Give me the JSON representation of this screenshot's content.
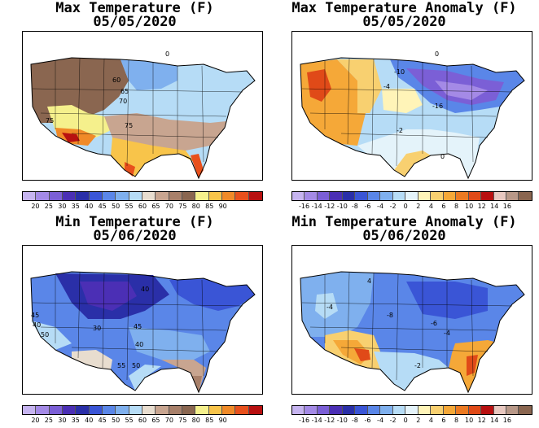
{
  "panels": [
    {
      "title": "Max Temperature (F)",
      "date": "05/05/2020",
      "scale": "temp",
      "contour_labels": [
        "0",
        "60",
        "65",
        "70",
        "75",
        "75"
      ]
    },
    {
      "title": "Max Temperature Anomaly (F)",
      "date": "05/05/2020",
      "scale": "anom",
      "contour_labels": [
        "0",
        "-10",
        "-4",
        "-16",
        "-2",
        "0"
      ]
    },
    {
      "title": "Min Temperature (F)",
      "date": "05/06/2020",
      "scale": "temp",
      "contour_labels": [
        "40",
        "45",
        "40",
        "50",
        "30",
        "45",
        "40",
        "55",
        "50"
      ]
    },
    {
      "title": "Min Temperature Anomaly (F)",
      "date": "05/06/2020",
      "scale": "anom",
      "contour_labels": [
        "4",
        "-4",
        "-8",
        "-6",
        "-4",
        "-2"
      ]
    }
  ],
  "legends": {
    "temp": {
      "ticks": [
        "20",
        "25",
        "30",
        "35",
        "40",
        "45",
        "50",
        "55",
        "60",
        "65",
        "70",
        "75",
        "80",
        "85",
        "90"
      ],
      "colors": [
        "#c6b4f0",
        "#a48ae6",
        "#7b5fd6",
        "#4b2fb5",
        "#2a2fa8",
        "#3a55d6",
        "#5a86e8",
        "#7fb0ee",
        "#b6dcf6",
        "#e8ddcf",
        "#c8a590",
        "#a8806a",
        "#8a6650",
        "#f5f08c",
        "#f8c44a",
        "#f08a28",
        "#e8501c",
        "#b81010"
      ]
    },
    "anom": {
      "ticks": [
        "-16",
        "-14",
        "-12",
        "-10",
        "-8",
        "-6",
        "-4",
        "-2",
        "0",
        "2",
        "4",
        "6",
        "8",
        "10",
        "12",
        "14",
        "16"
      ],
      "colors": [
        "#c6b4f0",
        "#a48ae6",
        "#7b5fd6",
        "#4b2fb5",
        "#2a2fa8",
        "#3a55d6",
        "#5a86e8",
        "#7fb0ee",
        "#b6dcf6",
        "#e4f3fa",
        "#fff4b8",
        "#f8d070",
        "#f5a838",
        "#ec7a22",
        "#e04a18",
        "#b81010",
        "#e8c8c0",
        "#b89888",
        "#8a6650"
      ]
    }
  }
}
